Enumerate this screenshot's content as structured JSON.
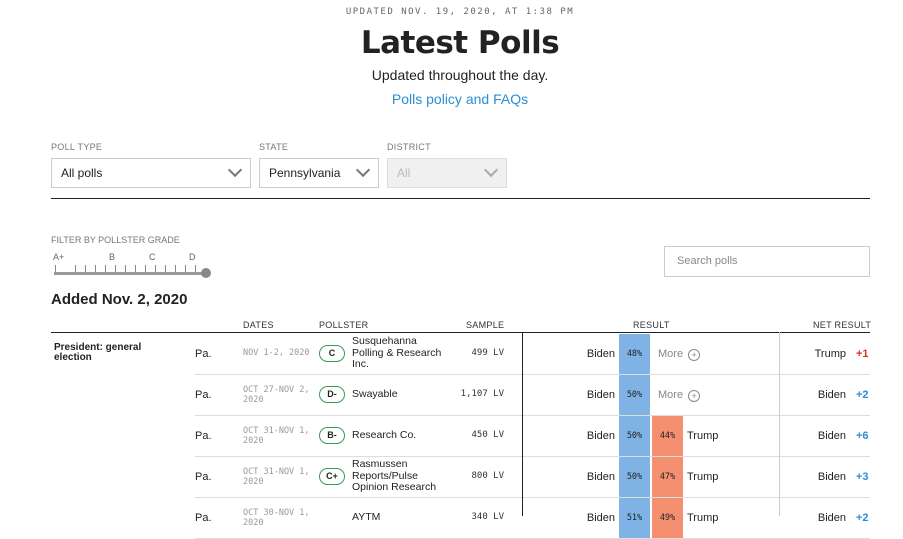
{
  "header": {
    "updated": "UPDATED NOV. 19, 2020, AT 1:38 PM",
    "title": "Latest Polls",
    "subtitle": "Updated throughout the day.",
    "policy_link": "Polls policy and FAQs"
  },
  "filters": {
    "poll_type": {
      "label": "POLL TYPE",
      "value": "All polls"
    },
    "state": {
      "label": "STATE",
      "value": "Pennsylvania"
    },
    "district": {
      "label": "DISTRICT",
      "value": "All"
    }
  },
  "grade_filter": {
    "label": "FILTER BY POLLSTER GRADE",
    "grades": [
      "A+",
      "B",
      "C",
      "D"
    ]
  },
  "search": {
    "placeholder": "Search polls"
  },
  "section": {
    "title": "Added Nov. 2, 2020"
  },
  "columns": {
    "dates": "DATES",
    "pollster": "POLLSTER",
    "sample": "SAMPLE",
    "result": "RESULT",
    "net_result": "NET RESULT"
  },
  "race": "President: general election",
  "more_label": "More",
  "colors": {
    "biden": "#7fb3e6",
    "trump": "#f4906f",
    "blue_text": "#2a8fd1",
    "red_text": "#d9322b",
    "grade_border": "#3a9a54"
  },
  "rows": [
    {
      "state": "Pa.",
      "dates": [
        "NOV 1-2, 2020"
      ],
      "grade": "C",
      "pollster": [
        "Susquehanna",
        "Polling & Research",
        "Inc."
      ],
      "sample": "499 LV",
      "cand1": "Biden",
      "pct1": "48%",
      "cand2": "",
      "pct2": "",
      "net_cand": "Trump",
      "net_value": "+1"
    },
    {
      "state": "Pa.",
      "dates": [
        "OCT 27-NOV 2,",
        "2020"
      ],
      "grade": "D-",
      "pollster": [
        "Swayable"
      ],
      "sample": "1,107 LV",
      "cand1": "Biden",
      "pct1": "50%",
      "cand2": "",
      "pct2": "",
      "net_cand": "Biden",
      "net_value": "+2"
    },
    {
      "state": "Pa.",
      "dates": [
        "OCT 31-NOV 1,",
        "2020"
      ],
      "grade": "B-",
      "pollster": [
        "Research Co."
      ],
      "sample": "450 LV",
      "cand1": "Biden",
      "pct1": "50%",
      "cand2": "Trump",
      "pct2": "44%",
      "net_cand": "Biden",
      "net_value": "+6"
    },
    {
      "state": "Pa.",
      "dates": [
        "OCT 31-NOV 1,",
        "2020"
      ],
      "grade": "C+",
      "pollster": [
        "Rasmussen",
        "Reports/Pulse",
        "Opinion Research"
      ],
      "sample": "800 LV",
      "cand1": "Biden",
      "pct1": "50%",
      "cand2": "Trump",
      "pct2": "47%",
      "net_cand": "Biden",
      "net_value": "+3"
    },
    {
      "state": "Pa.",
      "dates": [
        "OCT 30-NOV 1,",
        "2020"
      ],
      "grade": "",
      "pollster": [
        "AYTM"
      ],
      "sample": "340 LV",
      "cand1": "Biden",
      "pct1": "51%",
      "cand2": "Trump",
      "pct2": "49%",
      "net_cand": "Biden",
      "net_value": "+2"
    }
  ]
}
